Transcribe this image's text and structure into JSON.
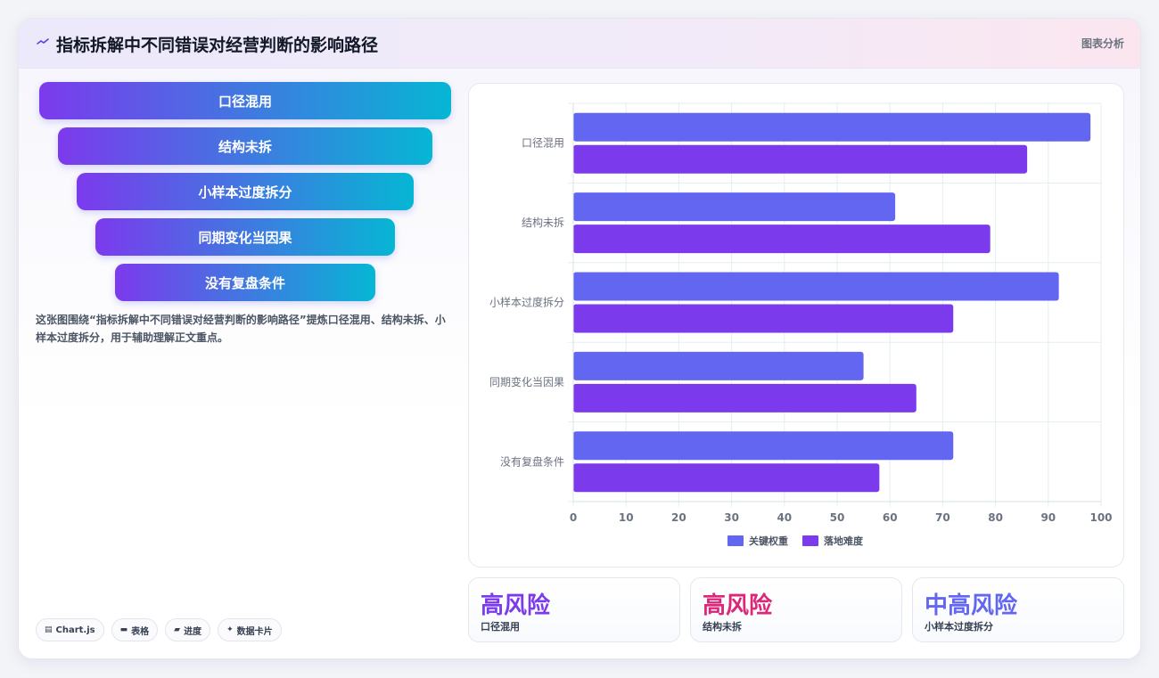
{
  "header": {
    "title": "指标拆解中不同错误对经营判断的影响路径",
    "tag": "图表分析"
  },
  "funnel": {
    "steps": [
      "口径混用",
      "结构未拆",
      "小样本过度拆分",
      "同期变化当因果",
      "没有复盘条件"
    ]
  },
  "description": "这张图围绕“指标拆解中不同错误对经营判断的影响路径”提炼口径混用、结构未拆、小样本过度拆分，用于辅助理解正文重点。",
  "tools": [
    {
      "icon": "chart-icon",
      "glyph": "▤",
      "label": "Chart.js"
    },
    {
      "icon": "table-icon",
      "glyph": "▬",
      "label": "表格"
    },
    {
      "icon": "progress-icon",
      "glyph": "▰",
      "label": "进度"
    },
    {
      "icon": "card-icon",
      "glyph": "✦",
      "label": "数据卡片"
    }
  ],
  "chart_data": {
    "type": "bar",
    "orientation": "horizontal",
    "categories": [
      "口径混用",
      "结构未拆",
      "小样本过度拆分",
      "同期变化当因果",
      "没有复盘条件"
    ],
    "series": [
      {
        "name": "关键权重",
        "values": [
          98,
          61,
          92,
          55,
          72
        ],
        "color": "#6366f1"
      },
      {
        "name": "落地难度",
        "values": [
          86,
          79,
          72,
          65,
          58
        ],
        "color": "#7c3aed"
      }
    ],
    "xlim": [
      0,
      100
    ],
    "x_ticks": [
      0,
      10,
      20,
      30,
      40,
      50,
      60,
      70,
      80,
      90,
      100
    ],
    "grid": true,
    "legend_position": "bottom"
  },
  "stats": [
    {
      "value": "高风险",
      "label": "口径混用",
      "color": "#7c3aed"
    },
    {
      "value": "高风险",
      "label": "结构未拆",
      "color": "#db2777"
    },
    {
      "value": "中高风险",
      "label": "小样本过度拆分",
      "color": "#6366f1"
    }
  ]
}
